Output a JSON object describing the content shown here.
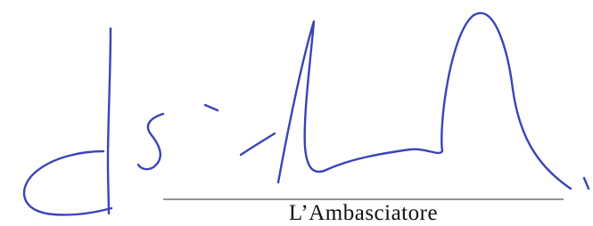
{
  "signature_caption": "L’Ambasciatore"
}
